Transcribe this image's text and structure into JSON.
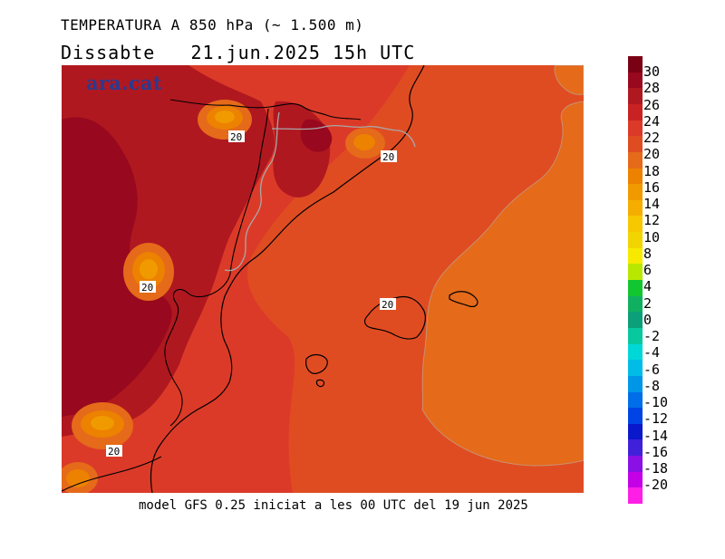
{
  "header": {
    "title": "TEMPERATURA A 850 hPa (~ 1.500 m)",
    "day": "Dissabte",
    "date_time": "21.jun.2025 15h UTC"
  },
  "map": {
    "brand": "ara.cat",
    "contour_labels": [
      "20",
      "20",
      "20",
      "20",
      "20"
    ]
  },
  "footer": {
    "model_info": "model GFS 0.25 iniciat a les 00 UTC del 19 jun 2025"
  },
  "legend": {
    "labels": [
      "30",
      "28",
      "26",
      "24",
      "22",
      "20",
      "18",
      "16",
      "14",
      "12",
      "10",
      "8",
      "6",
      "4",
      "2",
      "0",
      "-2",
      "-4",
      "-6",
      "-8",
      "-10",
      "-12",
      "-14",
      "-16",
      "-18",
      "-20"
    ],
    "colors": [
      "#7a0014",
      "#98081e",
      "#b01820",
      "#c82222",
      "#dc3a28",
      "#e04c22",
      "#e56a1a",
      "#ec8200",
      "#f09a00",
      "#f5ae00",
      "#f7c800",
      "#f2d400",
      "#f7ea00",
      "#b8e800",
      "#12c630",
      "#10b060",
      "#0ca07a",
      "#08c8a0",
      "#00d8d8",
      "#00bce6",
      "#0096e8",
      "#006ee8",
      "#0044e6",
      "#0a18cc",
      "#4020d8",
      "#8a10e4",
      "#c400e6",
      "#ff1ee6"
    ]
  }
}
